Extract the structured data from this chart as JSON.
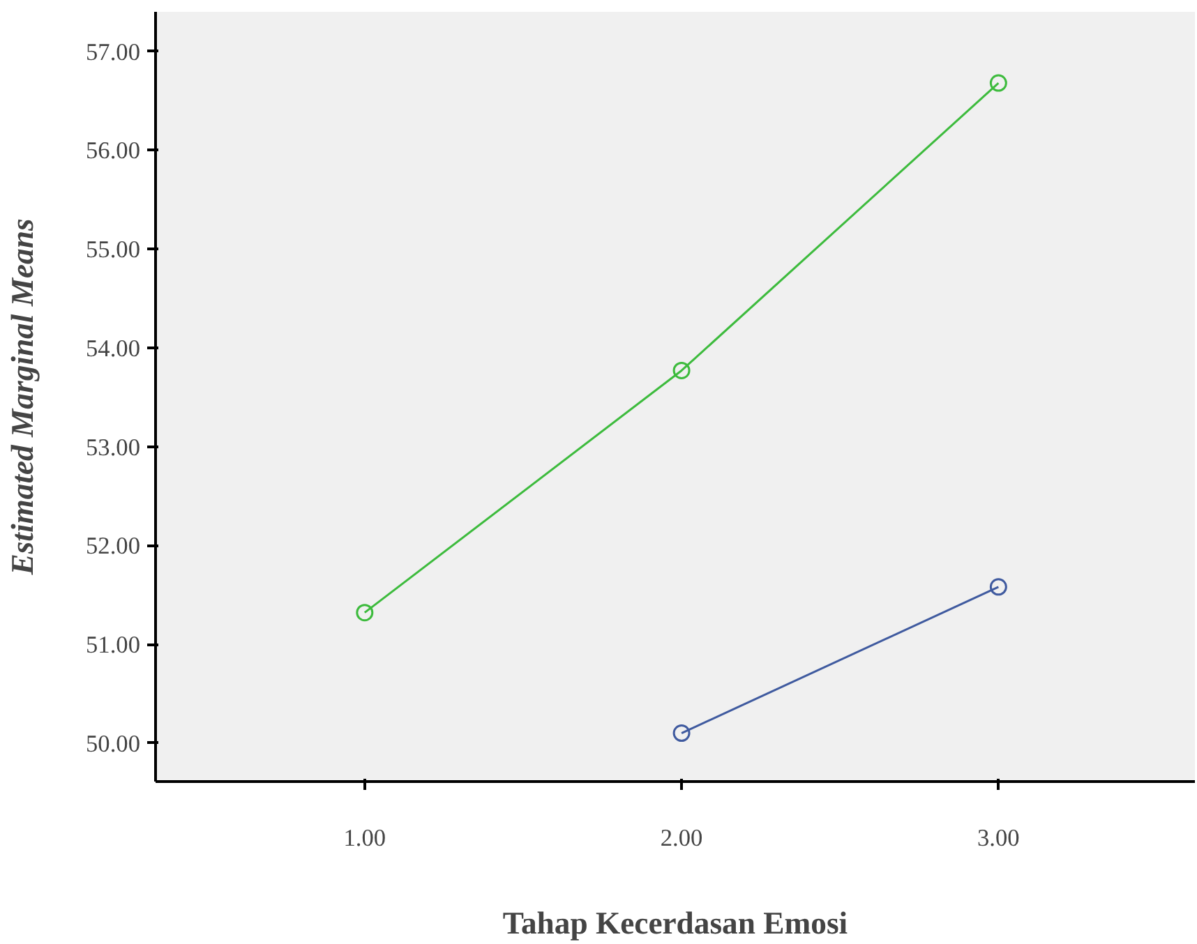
{
  "chart_data": {
    "type": "line",
    "xlabel": "Tahap Kecerdasan Emosi",
    "ylabel": "Estimated Marginal Means",
    "x": [
      1,
      2,
      3
    ],
    "series": [
      {
        "color": "#3dbb3d",
        "values": [
          51.32,
          53.77,
          56.68
        ]
      },
      {
        "color": "#3f5a9f",
        "values": [
          null,
          50.1,
          51.58
        ]
      }
    ],
    "xlim": [
      0.34,
      3.62
    ],
    "xticks": [
      {
        "value": 1,
        "label": "1.00"
      },
      {
        "value": 2,
        "label": "2.00"
      },
      {
        "value": 3,
        "label": "3.00"
      }
    ],
    "ylim": [
      49.61,
      57.4
    ],
    "yticks": [
      {
        "value": 50,
        "label": "50.00"
      },
      {
        "value": 51,
        "label": "51.00"
      },
      {
        "value": 52,
        "label": "52.00"
      },
      {
        "value": 53,
        "label": "53.00"
      },
      {
        "value": 54,
        "label": "54.00"
      },
      {
        "value": 55,
        "label": "55.00"
      },
      {
        "value": 56,
        "label": "56.00"
      },
      {
        "value": 57,
        "label": "57.00"
      }
    ],
    "grid": false,
    "marker": "circle",
    "line_style": "solid"
  }
}
